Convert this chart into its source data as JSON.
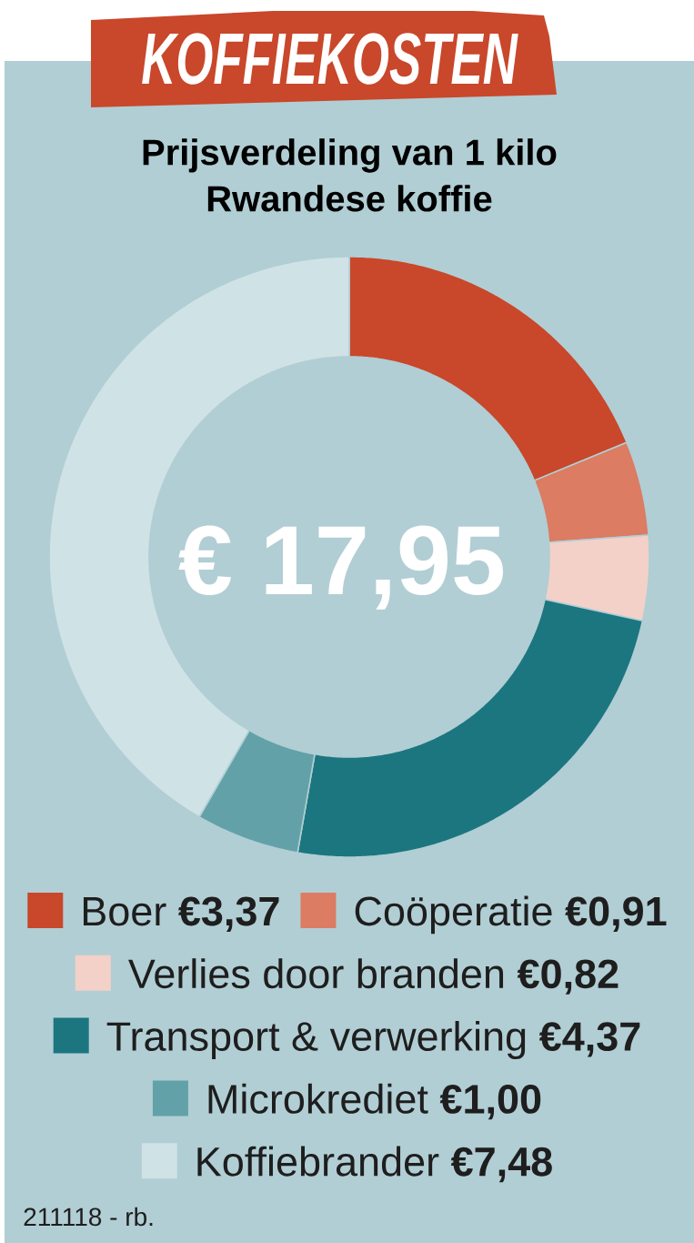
{
  "chart_data": {
    "type": "donut",
    "title": "KOFFIEKOSTEN",
    "subtitle": "Prijsverdeling van 1 kilo Rwandese koffie",
    "categories": [
      "Boer",
      "Coöperatie",
      "Verlies door branden",
      "Transport & verwerking",
      "Microkrediet",
      "Koffiebrander"
    ],
    "values": [
      3.37,
      0.91,
      0.82,
      4.37,
      1.0,
      7.48
    ],
    "colors": [
      "#c9472a",
      "#db7c63",
      "#f3d1c8",
      "#1c7680",
      "#63a1a8",
      "#cfe2e6"
    ],
    "value_labels": [
      "€3,37",
      "€0,91",
      "€0,82",
      "€4,37",
      "€1,00",
      "€7,48"
    ],
    "legend": "bottom",
    "annotations": [
      "€ 17,95",
      "211118 - rb."
    ]
  }
}
